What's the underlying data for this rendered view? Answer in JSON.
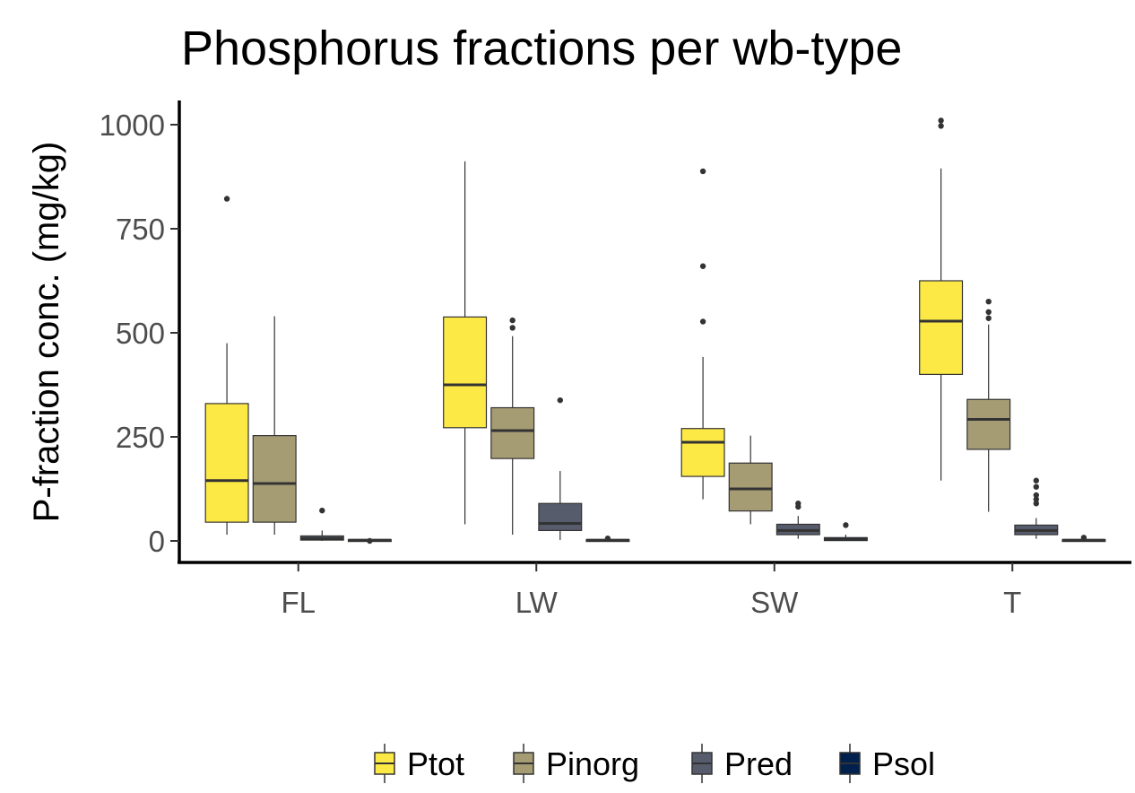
{
  "chart_data": {
    "type": "boxplot",
    "title": "Phosphorus fractions per wb-type",
    "xlabel": "",
    "ylabel": "P-fraction conc. (mg/kg)",
    "ylim": [
      -50,
      1055
    ],
    "yticks": [
      0,
      250,
      500,
      750,
      1000
    ],
    "categories": [
      "FL",
      "LW",
      "SW",
      "T"
    ],
    "legend_position": "bottom",
    "series": [
      {
        "name": "Ptot",
        "color": "#FDE945",
        "boxes": [
          {
            "whisker_low": 15,
            "q1": 45,
            "median": 145,
            "q3": 330,
            "whisker_high": 475,
            "outliers": [
              822
            ]
          },
          {
            "whisker_low": 40,
            "q1": 272,
            "median": 375,
            "q3": 538,
            "whisker_high": 912,
            "outliers": []
          },
          {
            "whisker_low": 100,
            "q1": 155,
            "median": 237,
            "q3": 270,
            "whisker_high": 442,
            "outliers": [
              888,
              660,
              527
            ]
          },
          {
            "whisker_low": 145,
            "q1": 400,
            "median": 528,
            "q3": 625,
            "whisker_high": 895,
            "outliers": [
              1010,
              997
            ]
          }
        ]
      },
      {
        "name": "Pinorg",
        "color": "#A59C74",
        "boxes": [
          {
            "whisker_low": 15,
            "q1": 45,
            "median": 138,
            "q3": 253,
            "whisker_high": 540,
            "outliers": []
          },
          {
            "whisker_low": 15,
            "q1": 198,
            "median": 265,
            "q3": 320,
            "whisker_high": 492,
            "outliers": [
              530,
              512
            ]
          },
          {
            "whisker_low": 40,
            "q1": 72,
            "median": 125,
            "q3": 187,
            "whisker_high": 253,
            "outliers": []
          },
          {
            "whisker_low": 70,
            "q1": 220,
            "median": 292,
            "q3": 340,
            "whisker_high": 520,
            "outliers": [
              575,
              550,
              535
            ]
          }
        ]
      },
      {
        "name": "Pred",
        "color": "#575C6D",
        "boxes": [
          {
            "whisker_low": 0,
            "q1": 2,
            "median": 6,
            "q3": 12,
            "whisker_high": 25,
            "outliers": [
              73
            ]
          },
          {
            "whisker_low": 2,
            "q1": 25,
            "median": 42,
            "q3": 90,
            "whisker_high": 168,
            "outliers": [
              338
            ]
          },
          {
            "whisker_low": 5,
            "q1": 15,
            "median": 25,
            "q3": 40,
            "whisker_high": 60,
            "outliers": [
              90,
              82
            ]
          },
          {
            "whisker_low": 5,
            "q1": 15,
            "median": 25,
            "q3": 38,
            "whisker_high": 55,
            "outliers": [
              145,
              130,
              110,
              100,
              90
            ]
          }
        ]
      },
      {
        "name": "Psol",
        "color": "#00204D",
        "boxes": [
          {
            "whisker_low": 0,
            "q1": 1,
            "median": 2,
            "q3": 3,
            "whisker_high": 5,
            "outliers": [
              0
            ]
          },
          {
            "whisker_low": 0,
            "q1": 1,
            "median": 2,
            "q3": 3,
            "whisker_high": 5,
            "outliers": [
              6
            ]
          },
          {
            "whisker_low": 0,
            "q1": 1,
            "median": 3,
            "q3": 8,
            "whisker_high": 15,
            "outliers": [
              38
            ]
          },
          {
            "whisker_low": 0,
            "q1": 1,
            "median": 2,
            "q3": 3,
            "whisker_high": 5,
            "outliers": [
              8
            ]
          }
        ]
      }
    ]
  }
}
